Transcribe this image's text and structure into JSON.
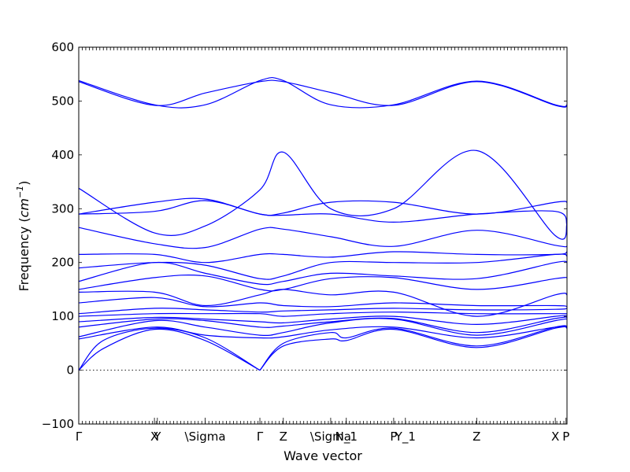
{
  "chart_data": {
    "type": "line",
    "xlabel": "Wave vector",
    "ylabel": "Frequency ($cm^{-1}$)",
    "ylabel_text": "Frequency (",
    "ylabel_math": "cm",
    "ylabel_exp": "−1",
    "ylabel_close": ")",
    "ylim": [
      -100,
      600
    ],
    "yticks": [
      -100,
      0,
      100,
      200,
      300,
      400,
      500,
      600
    ],
    "xlim": [
      0,
      1
    ],
    "minor_tick_step": 0.0072,
    "grid": false,
    "high_symmetry_points": [
      {
        "label": "Γ",
        "x": 0.0
      },
      {
        "label": "X",
        "x": 0.155
      },
      {
        "label": "Y",
        "x": 0.161
      },
      {
        "label": "\\Sigma",
        "x": 0.259
      },
      {
        "label": "Γ",
        "x": 0.371
      },
      {
        "label": "Z",
        "x": 0.419
      },
      {
        "label": "\\Sigma",
        "x": 0.516
      },
      {
        "label": "N_1",
        "x": 0.548
      },
      {
        "label": "P",
        "x": 0.645
      },
      {
        "label": "Y_1",
        "x": 0.669
      },
      {
        "label": "Z",
        "x": 0.815
      },
      {
        "label": "X",
        "x": 0.976
      },
      {
        "label": "P",
        "x": 0.998
      }
    ],
    "series": [
      {
        "values": [
          [
            0,
            0
          ],
          [
            0.05,
            40
          ],
          [
            0.155,
            76
          ],
          [
            0.259,
            55
          ],
          [
            0.371,
            0
          ]
        ]
      },
      {
        "values": [
          [
            0,
            0
          ],
          [
            0.05,
            55
          ],
          [
            0.155,
            78
          ],
          [
            0.259,
            60
          ],
          [
            0.371,
            0
          ]
        ]
      },
      {
        "values": [
          [
            0.371,
            0
          ],
          [
            0.419,
            45
          ],
          [
            0.516,
            58
          ],
          [
            0.548,
            55
          ],
          [
            0.645,
            76
          ],
          [
            0.815,
            42
          ],
          [
            0.976,
            78
          ],
          [
            1,
            78
          ]
        ]
      },
      {
        "values": [
          [
            0.371,
            0
          ],
          [
            0.419,
            50
          ],
          [
            0.516,
            70
          ],
          [
            0.548,
            60
          ],
          [
            0.645,
            78
          ],
          [
            0.815,
            45
          ],
          [
            0.976,
            80
          ],
          [
            1,
            80
          ]
        ]
      },
      {
        "values": [
          [
            0,
            58
          ],
          [
            0.155,
            80
          ],
          [
            0.259,
            65
          ],
          [
            0.371,
            60
          ],
          [
            0.419,
            62
          ],
          [
            0.516,
            75
          ],
          [
            0.645,
            80
          ],
          [
            0.815,
            60
          ],
          [
            0.976,
            80
          ],
          [
            1,
            80
          ]
        ]
      },
      {
        "values": [
          [
            0,
            62
          ],
          [
            0.155,
            92
          ],
          [
            0.259,
            80
          ],
          [
            0.371,
            65
          ],
          [
            0.419,
            70
          ],
          [
            0.516,
            88
          ],
          [
            0.645,
            95
          ],
          [
            0.815,
            65
          ],
          [
            0.976,
            92
          ],
          [
            1,
            95
          ]
        ]
      },
      {
        "values": [
          [
            0,
            80
          ],
          [
            0.155,
            95
          ],
          [
            0.259,
            92
          ],
          [
            0.371,
            80
          ],
          [
            0.419,
            82
          ],
          [
            0.516,
            90
          ],
          [
            0.645,
            96
          ],
          [
            0.815,
            70
          ],
          [
            0.976,
            96
          ],
          [
            1,
            98
          ]
        ]
      },
      {
        "values": [
          [
            0,
            90
          ],
          [
            0.155,
            98
          ],
          [
            0.259,
            95
          ],
          [
            0.371,
            90
          ],
          [
            0.419,
            88
          ],
          [
            0.516,
            95
          ],
          [
            0.645,
            100
          ],
          [
            0.815,
            85
          ],
          [
            0.976,
            100
          ],
          [
            1,
            102
          ]
        ]
      },
      {
        "values": [
          [
            0,
            100
          ],
          [
            0.155,
            105
          ],
          [
            0.259,
            105
          ],
          [
            0.371,
            105
          ],
          [
            0.419,
            100
          ],
          [
            0.516,
            105
          ],
          [
            0.645,
            108
          ],
          [
            0.815,
            105
          ],
          [
            0.976,
            105
          ],
          [
            1,
            105
          ]
        ]
      },
      {
        "values": [
          [
            0,
            105
          ],
          [
            0.155,
            115
          ],
          [
            0.259,
            112
          ],
          [
            0.371,
            108
          ],
          [
            0.419,
            110
          ],
          [
            0.516,
            112
          ],
          [
            0.645,
            115
          ],
          [
            0.815,
            112
          ],
          [
            0.976,
            113
          ],
          [
            1,
            115
          ]
        ]
      },
      {
        "values": [
          [
            0,
            125
          ],
          [
            0.155,
            135
          ],
          [
            0.259,
            118
          ],
          [
            0.371,
            125
          ],
          [
            0.419,
            120
          ],
          [
            0.516,
            118
          ],
          [
            0.645,
            125
          ],
          [
            0.815,
            120
          ],
          [
            0.976,
            120
          ],
          [
            1,
            118
          ]
        ]
      },
      {
        "values": [
          [
            0,
            145
          ],
          [
            0.155,
            145
          ],
          [
            0.259,
            120
          ],
          [
            0.371,
            140
          ],
          [
            0.419,
            150
          ],
          [
            0.516,
            140
          ],
          [
            0.645,
            145
          ],
          [
            0.815,
            100
          ],
          [
            0.976,
            140
          ],
          [
            1,
            140
          ]
        ]
      },
      {
        "values": [
          [
            0,
            150
          ],
          [
            0.155,
            172
          ],
          [
            0.259,
            175
          ],
          [
            0.371,
            150
          ],
          [
            0.419,
            150
          ],
          [
            0.516,
            170
          ],
          [
            0.645,
            172
          ],
          [
            0.815,
            150
          ],
          [
            0.976,
            170
          ],
          [
            1,
            172
          ]
        ]
      },
      {
        "values": [
          [
            0,
            165
          ],
          [
            0.155,
            200
          ],
          [
            0.259,
            180
          ],
          [
            0.371,
            160
          ],
          [
            0.419,
            165
          ],
          [
            0.516,
            180
          ],
          [
            0.645,
            175
          ],
          [
            0.815,
            170
          ],
          [
            0.976,
            200
          ],
          [
            1,
            200
          ]
        ]
      },
      {
        "values": [
          [
            0,
            190
          ],
          [
            0.155,
            200
          ],
          [
            0.259,
            195
          ],
          [
            0.371,
            170
          ],
          [
            0.419,
            175
          ],
          [
            0.516,
            200
          ],
          [
            0.645,
            200
          ],
          [
            0.815,
            200
          ],
          [
            0.976,
            215
          ],
          [
            1,
            212
          ]
        ]
      },
      {
        "values": [
          [
            0,
            215
          ],
          [
            0.155,
            215
          ],
          [
            0.259,
            200
          ],
          [
            0.371,
            215
          ],
          [
            0.419,
            215
          ],
          [
            0.516,
            210
          ],
          [
            0.645,
            220
          ],
          [
            0.815,
            215
          ],
          [
            0.976,
            215
          ],
          [
            1,
            220
          ]
        ]
      },
      {
        "values": [
          [
            0,
            265
          ],
          [
            0.155,
            235
          ],
          [
            0.259,
            228
          ],
          [
            0.371,
            262
          ],
          [
            0.419,
            262
          ],
          [
            0.516,
            248
          ],
          [
            0.645,
            230
          ],
          [
            0.815,
            260
          ],
          [
            0.976,
            232
          ],
          [
            1,
            230
          ]
        ]
      },
      {
        "values": [
          [
            0,
            290
          ],
          [
            0.155,
            295
          ],
          [
            0.259,
            315
          ],
          [
            0.371,
            290
          ],
          [
            0.419,
            288
          ],
          [
            0.516,
            290
          ],
          [
            0.645,
            275
          ],
          [
            0.815,
            290
          ],
          [
            0.976,
            295
          ],
          [
            1,
            270
          ]
        ]
      },
      {
        "values": [
          [
            0,
            338
          ],
          [
            0.155,
            255
          ],
          [
            0.259,
            268
          ],
          [
            0.371,
            335
          ],
          [
            0.419,
            405
          ],
          [
            0.516,
            300
          ],
          [
            0.645,
            300
          ],
          [
            0.815,
            408
          ],
          [
            0.976,
            250
          ],
          [
            1,
            272
          ]
        ]
      },
      {
        "values": [
          [
            0,
            290
          ],
          [
            0.155,
            312
          ],
          [
            0.259,
            318
          ],
          [
            0.371,
            290
          ],
          [
            0.419,
            292
          ],
          [
            0.516,
            312
          ],
          [
            0.645,
            312
          ],
          [
            0.815,
            290
          ],
          [
            0.976,
            312
          ],
          [
            1,
            312
          ]
        ]
      },
      {
        "values": [
          [
            0,
            536
          ],
          [
            0.155,
            492
          ],
          [
            0.259,
            515
          ],
          [
            0.371,
            536
          ],
          [
            0.419,
            536
          ],
          [
            0.516,
            516
          ],
          [
            0.645,
            492
          ],
          [
            0.815,
            536
          ],
          [
            0.976,
            492
          ],
          [
            1,
            492
          ]
        ]
      },
      {
        "values": [
          [
            0,
            538
          ],
          [
            0.155,
            493
          ],
          [
            0.259,
            493
          ],
          [
            0.371,
            538
          ],
          [
            0.419,
            538
          ],
          [
            0.516,
            493
          ],
          [
            0.645,
            493
          ],
          [
            0.815,
            537
          ],
          [
            0.976,
            493
          ],
          [
            1,
            493
          ]
        ]
      }
    ]
  }
}
